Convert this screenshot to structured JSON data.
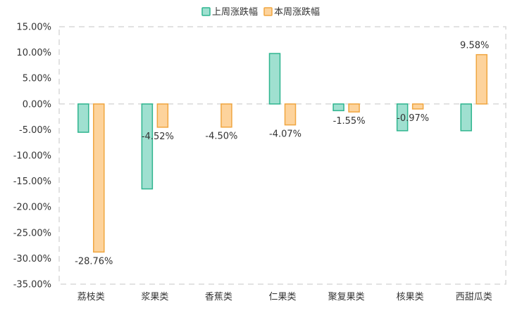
{
  "chart_data": {
    "type": "bar",
    "categories": [
      "荔枝类",
      "浆果类",
      "香蕉类",
      "仁果类",
      "聚复果类",
      "核果类",
      "西甜瓜类"
    ],
    "series": [
      {
        "name": "上周涨跌幅",
        "color": "#9fe0d0",
        "stroke": "#2fb58f",
        "values": [
          -5.5,
          -16.5,
          null,
          9.8,
          -1.3,
          -5.2,
          -5.2
        ]
      },
      {
        "name": "本周涨跌幅",
        "color": "#fdd39c",
        "stroke": "#f0a640",
        "values": [
          -28.76,
          -4.52,
          -4.5,
          -4.07,
          -1.55,
          -0.97,
          9.58
        ],
        "labels": [
          "-28.76%",
          "-4.52%",
          "-4.50%",
          "-4.07%",
          "-1.55%",
          "-0.97%",
          "9.58%"
        ]
      }
    ],
    "y_ticks": [
      "15.00%",
      "10.00%",
      "5.00%",
      "0.00%",
      "-5.00%",
      "-10.00%",
      "-15.00%",
      "-20.00%",
      "-25.00%",
      "-30.00%",
      "-35.00%"
    ],
    "ylim": [
      -35,
      15
    ],
    "grid": false,
    "legend": "top-center"
  }
}
